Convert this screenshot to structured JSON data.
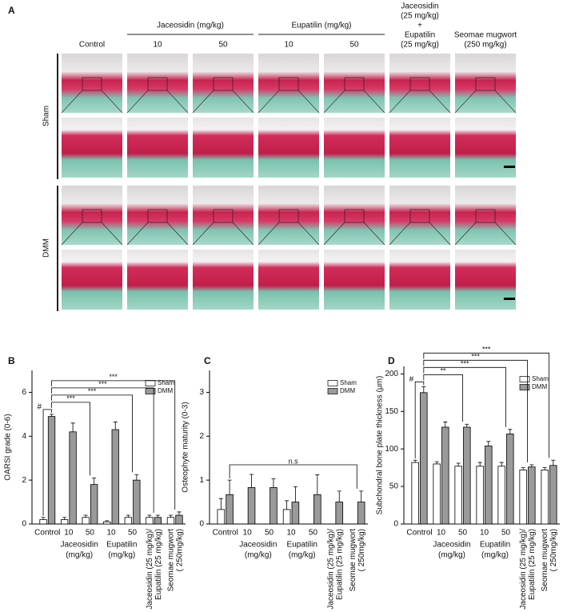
{
  "panel_a": {
    "label": "A",
    "columns": [
      [
        "Control"
      ],
      [
        "10"
      ],
      [
        "50"
      ],
      [
        "10"
      ],
      [
        "50"
      ],
      [
        "Jaceosidin",
        "(25 mg/kg)",
        "+",
        "Eupatilin",
        "(25 mg/kg)"
      ],
      [
        "Seomae mugwort",
        "(250 mg/kg)"
      ]
    ],
    "group_labels": [
      "Jaceosidin (mg/kg)",
      "Eupatilin (mg/kg)"
    ],
    "rows": [
      "Sham",
      "DMM"
    ]
  },
  "chart_data": [
    {
      "type": "bar",
      "label": "B",
      "ylabel": "OARSI grade (0-6)",
      "categories": [
        "Control",
        "10",
        "50",
        "10",
        "50",
        [
          "Jaceosidin (25 mg/kg)/",
          "Eupatilin (25 mg/kg)"
        ],
        [
          "Seomae mugwort",
          "( 250mg/kg)"
        ]
      ],
      "group_labels": [
        [
          "Jaceosidin",
          "(mg/kg)"
        ],
        [
          "Eupatilin",
          "(mg/kg)"
        ]
      ],
      "series": [
        {
          "name": "Sham",
          "color": "#ffffff",
          "values": [
            0.2,
            0.2,
            0.3,
            0.1,
            0.3,
            0.3,
            0.3
          ],
          "errors": [
            0.1,
            0.1,
            0.1,
            0.05,
            0.1,
            0.1,
            0.1
          ]
        },
        {
          "name": "DMM",
          "color": "#9a9a9a",
          "values": [
            4.9,
            4.2,
            1.8,
            4.3,
            2.0,
            0.3,
            0.4
          ],
          "errors": [
            0.1,
            0.4,
            0.3,
            0.35,
            0.25,
            0.1,
            0.15
          ]
        }
      ],
      "ylim": [
        0,
        7
      ],
      "yticks": [
        0,
        2,
        4,
        6
      ],
      "legend": "upper right",
      "comparisons": [
        {
          "label": "#",
          "target": 0
        },
        {
          "label": "***",
          "target": 2
        },
        {
          "label": "***",
          "target": 4
        },
        {
          "label": "***",
          "target": 5
        },
        {
          "label": "***",
          "target": 6
        }
      ]
    },
    {
      "type": "bar",
      "label": "C",
      "ylabel": "Osteophyte maturity (0-3)",
      "categories": [
        "Control",
        "10",
        "50",
        "10",
        "50",
        [
          "Jaceosidin (25 mg/kg)/",
          "Eupatilin (25 mg/kg)"
        ],
        [
          "Seomae mugwort",
          "( 250mg/kg)"
        ]
      ],
      "group_labels": [
        [
          "Jaceosidin",
          "(mg/kg)"
        ],
        [
          "Eupatilin",
          "(mg/kg)"
        ]
      ],
      "series": [
        {
          "name": "Sham",
          "color": "#ffffff",
          "values": [
            0.33,
            0,
            0,
            0.33,
            0,
            0,
            0
          ],
          "errors": [
            0.25,
            0,
            0,
            0.2,
            0,
            0,
            0
          ]
        },
        {
          "name": "DMM",
          "color": "#9a9a9a",
          "values": [
            0.67,
            0.83,
            0.83,
            0.5,
            0.67,
            0.5,
            0.5
          ],
          "errors": [
            0.33,
            0.3,
            0.2,
            0.35,
            0.45,
            0.25,
            0.25
          ]
        }
      ],
      "ylim": [
        0,
        3.5
      ],
      "yticks": [
        0,
        1,
        2,
        3
      ],
      "legend": "upper right",
      "comparisons": [
        {
          "label": "n.s",
          "target": 6
        }
      ]
    },
    {
      "type": "bar",
      "label": "D",
      "ylabel": "Subchondral bone plate thickness (μm)",
      "categories": [
        "Control",
        "10",
        "50",
        "10",
        "50",
        [
          "Jaceosidin (25 mg/kg)/",
          "Eupatilin (25 mg/kg)"
        ],
        [
          "Seomae mugwort",
          "( 250mg/kg)"
        ]
      ],
      "group_labels": [
        [
          "Jaceosidin",
          "(mg/kg)"
        ],
        [
          "Eupatilin",
          "(mg/kg)"
        ]
      ],
      "series": [
        {
          "name": "Sham",
          "color": "#ffffff",
          "values": [
            82,
            80,
            77,
            77,
            77,
            72,
            72
          ],
          "errors": [
            3,
            3,
            4,
            5,
            5,
            3,
            3
          ]
        },
        {
          "name": "DMM",
          "color": "#9a9a9a",
          "values": [
            175,
            129,
            129,
            104,
            120,
            76,
            78
          ],
          "errors": [
            8,
            7,
            4,
            6,
            6,
            3,
            7
          ]
        }
      ],
      "ylim": [
        0,
        210
      ],
      "yticks": [
        0,
        50,
        100,
        150,
        200
      ],
      "legend": "upper right",
      "comparisons": [
        {
          "label": "#",
          "target": 0
        },
        {
          "label": "**",
          "target": 2
        },
        {
          "label": "***",
          "target": 4
        },
        {
          "label": "***",
          "target": 5
        },
        {
          "label": "***",
          "target": 6
        }
      ]
    }
  ]
}
